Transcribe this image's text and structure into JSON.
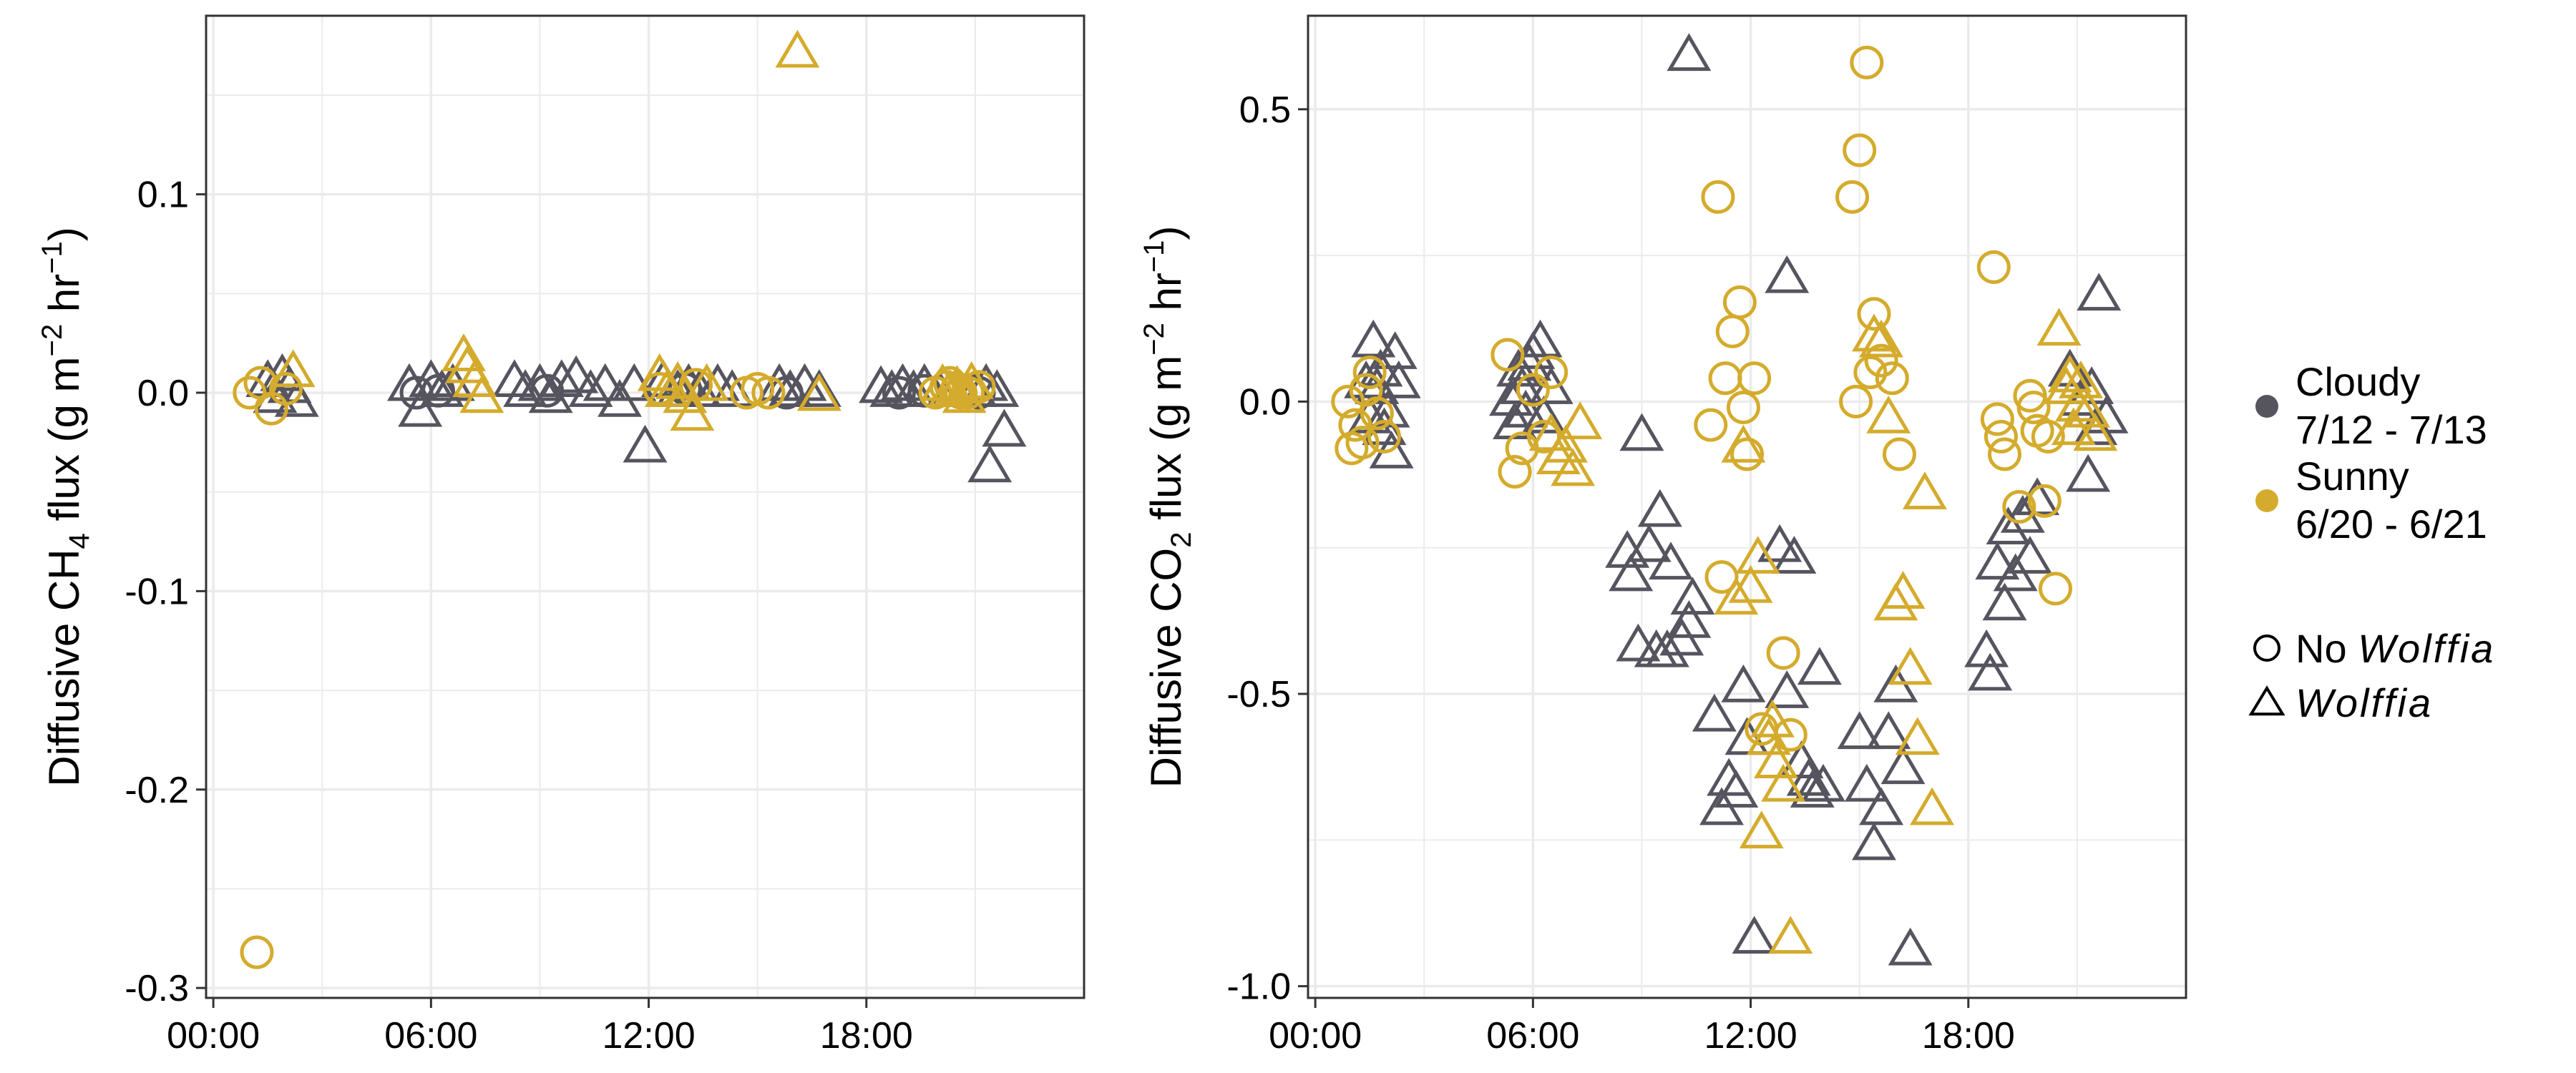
{
  "colors": {
    "cloudy": "#56545f",
    "sunny": "#d4ab2c",
    "grid": "#ebebeb",
    "panel_border": "#333333"
  },
  "legend": {
    "weather": [
      {
        "key": "cloudy",
        "line1": "Cloudy",
        "line2": "7/12 - 7/13"
      },
      {
        "key": "sunny",
        "line1": "Sunny",
        "line2": "6/20 - 6/21"
      }
    ],
    "treatment": [
      {
        "key": "no_wolffia",
        "shape": "circle",
        "prefix": "No ",
        "italic": "Wolffia"
      },
      {
        "key": "wolffia",
        "shape": "triangle",
        "prefix": "",
        "italic": "Wolffia"
      }
    ]
  },
  "chart_data": [
    {
      "type": "scatter",
      "title": "",
      "xlabel": "",
      "ylabel_parts": [
        "Diffusive CH",
        "4",
        " flux (g m",
        "−2",
        " hr",
        "−1",
        ")"
      ],
      "xlim": [
        -0.2,
        24
      ],
      "ylim": [
        -0.305,
        0.19
      ],
      "x_ticks": [
        0,
        6,
        12,
        18
      ],
      "x_tick_labels": [
        "00:00",
        "06:00",
        "12:00",
        "18:00"
      ],
      "y_ticks": [
        -0.3,
        -0.2,
        -0.1,
        0.0,
        0.1
      ],
      "y_tick_labels": [
        "-0.3",
        "-0.2",
        "-0.1",
        "0.0",
        "0.1"
      ],
      "grid": true,
      "series": [
        {
          "color_key": "cloudy",
          "shape": "triangle",
          "x": [
            1.5,
            1.7,
            1.9,
            2.1,
            2.3,
            5.4,
            5.7,
            6.0,
            6.3,
            6.6,
            8.3,
            8.6,
            9.0,
            9.3,
            9.6,
            10.0,
            10.4,
            10.8,
            11.2,
            11.6,
            11.9,
            12.4,
            12.8,
            13.1,
            13.4,
            13.9,
            14.3,
            15.6,
            15.9,
            16.3,
            16.7,
            18.4,
            18.7,
            19.0,
            19.3,
            19.6,
            20.0,
            20.5,
            21.0,
            21.3,
            21.6,
            21.8,
            21.4
          ],
          "y": [
            0.005,
            -0.003,
            0.008,
            0.002,
            -0.005,
            0.003,
            -0.01,
            0.005,
            0.0,
            0.003,
            0.005,
            0.0,
            0.003,
            -0.003,
            0.005,
            0.007,
            0.0,
            0.003,
            -0.005,
            0.003,
            -0.028,
            0.005,
            0.0,
            0.003,
            0.0,
            0.003,
            0.0,
            0.003,
            0.0,
            0.003,
            0.0,
            0.002,
            0.0,
            0.003,
            0.0,
            0.003,
            0.0,
            0.002,
            0.0,
            0.003,
            0.0,
            -0.02,
            -0.038
          ]
        },
        {
          "color_key": "cloudy",
          "shape": "circle",
          "x": [
            5.6,
            6.2,
            9.2,
            13.0,
            15.8,
            18.9,
            19.6,
            21.1
          ],
          "y": [
            0.0,
            0.001,
            0.001,
            0.002,
            0.0,
            0.0,
            0.001,
            0.0
          ]
        },
        {
          "color_key": "sunny",
          "shape": "circle",
          "x": [
            1.0,
            1.3,
            1.6,
            2.0,
            1.2,
            12.3,
            13.3,
            14.7,
            15.0,
            15.3,
            19.9,
            20.2,
            20.5,
            20.8,
            21.1,
            20.3,
            20.6
          ],
          "y": [
            0.0,
            0.005,
            -0.008,
            0.002,
            -0.282,
            0.002,
            0.004,
            0.0,
            0.002,
            0.0,
            0.0,
            0.003,
            0.002,
            0.0,
            0.003,
            0.005,
            0.0
          ]
        },
        {
          "color_key": "sunny",
          "shape": "triangle",
          "x": [
            2.2,
            6.9,
            7.0,
            7.2,
            7.4,
            12.3,
            12.5,
            12.8,
            13.0,
            13.2,
            13.6,
            16.1,
            16.7,
            20.1,
            20.3,
            20.5,
            20.7,
            20.9
          ],
          "y": [
            0.01,
            0.018,
            0.012,
            0.005,
            -0.003,
            0.008,
            0.0,
            0.004,
            -0.003,
            -0.012,
            0.003,
            0.171,
            -0.002,
            0.003,
            0.0,
            0.002,
            -0.003,
            0.004
          ]
        }
      ]
    },
    {
      "type": "scatter",
      "title": "",
      "xlabel": "",
      "ylabel_parts": [
        "Diffusive CO",
        "2",
        " flux (g m",
        "−2",
        " hr",
        "−1",
        ")"
      ],
      "xlim": [
        -0.2,
        24
      ],
      "ylim": [
        -1.02,
        0.66
      ],
      "x_ticks": [
        0,
        6,
        12,
        18
      ],
      "x_tick_labels": [
        "00:00",
        "06:00",
        "12:00",
        "18:00"
      ],
      "y_ticks": [
        -1.0,
        -0.5,
        0.0,
        0.5
      ],
      "y_tick_labels": [
        "-1.0",
        "-0.5",
        "0.0",
        "0.5"
      ],
      "grid": true,
      "series": [
        {
          "color_key": "cloudy",
          "shape": "triangle",
          "x": [
            1.4,
            1.6,
            1.8,
            2.0,
            2.2,
            1.5,
            1.7,
            1.9,
            2.1,
            2.3,
            5.4,
            5.6,
            5.8,
            6.0,
            6.2,
            5.5,
            5.7,
            5.9,
            6.3,
            6.5,
            8.6,
            8.7,
            8.9,
            9.0,
            9.2,
            9.4,
            9.5,
            9.7,
            9.8,
            10.1,
            10.4,
            10.3,
            11.0,
            11.2,
            11.4,
            11.6,
            11.8,
            11.9,
            12.1,
            12.8,
            13.0,
            13.2,
            13.4,
            13.6,
            13.7,
            13.9,
            14.0,
            15.0,
            15.2,
            15.4,
            15.6,
            15.8,
            16.0,
            16.2,
            16.4,
            18.5,
            18.6,
            18.8,
            19.0,
            19.1,
            19.3,
            19.5,
            19.7,
            19.9,
            20.8,
            21.1,
            21.4,
            21.6,
            21.8,
            21.3,
            21.5
          ],
          "y": [
            0.03,
            0.1,
            0.05,
            -0.02,
            0.08,
            -0.03,
            0.02,
            -0.05,
            -0.09,
            0.03,
            0.0,
            0.05,
            -0.02,
            0.08,
            0.1,
            -0.04,
            0.02,
            0.06,
            -0.03,
            0.02,
            -0.26,
            -0.3,
            -0.42,
            -0.06,
            -0.25,
            -0.43,
            -0.19,
            -0.43,
            -0.28,
            -0.41,
            -0.34,
            -0.38,
            -0.54,
            -0.7,
            -0.65,
            -0.67,
            -0.49,
            -0.58,
            -0.92,
            -0.25,
            -0.5,
            -0.27,
            -0.62,
            -0.65,
            -0.67,
            -0.46,
            -0.66,
            -0.57,
            -0.66,
            -0.76,
            -0.7,
            -0.57,
            -0.49,
            -0.63,
            -0.94,
            -0.43,
            -0.47,
            -0.28,
            -0.35,
            -0.22,
            -0.3,
            -0.2,
            -0.27,
            -0.17,
            0.05,
            0.0,
            0.02,
            0.18,
            -0.03,
            -0.13,
            -0.05
          ]
        },
        {
          "color_key": "cloudy",
          "shape": "triangle_extra",
          "x": [
            10.3,
            13.0
          ],
          "y": [
            0.59,
            0.21
          ]
        },
        {
          "color_key": "sunny",
          "shape": "circle",
          "x": [
            0.9,
            1.1,
            1.3,
            1.5,
            1.7,
            1.9,
            1.0,
            1.4,
            5.3,
            5.5,
            5.7,
            6.0,
            6.3,
            6.5,
            10.9,
            11.1,
            11.3,
            11.5,
            11.7,
            11.9,
            12.1,
            11.2,
            11.8,
            12.3,
            12.9,
            13.1,
            14.8,
            15.0,
            15.2,
            15.4,
            15.6,
            15.9,
            16.1,
            14.9,
            15.3,
            18.7,
            18.8,
            18.9,
            19.0,
            19.4,
            19.7,
            19.8,
            19.9,
            20.1,
            20.2,
            20.4
          ],
          "y": [
            0.0,
            -0.04,
            -0.07,
            0.05,
            -0.02,
            -0.06,
            -0.08,
            0.02,
            0.08,
            -0.12,
            -0.08,
            0.02,
            -0.06,
            0.05,
            -0.04,
            0.35,
            0.04,
            0.12,
            0.17,
            -0.09,
            0.04,
            -0.3,
            -0.01,
            -0.56,
            -0.43,
            -0.57,
            0.35,
            0.43,
            0.58,
            0.15,
            0.07,
            0.04,
            -0.09,
            0.0,
            0.05,
            0.23,
            -0.03,
            -0.06,
            -0.09,
            -0.18,
            0.01,
            -0.01,
            -0.05,
            -0.17,
            -0.06,
            -0.32
          ]
        },
        {
          "color_key": "sunny",
          "shape": "triangle",
          "x": [
            6.5,
            6.7,
            6.9,
            7.1,
            7.3,
            11.6,
            11.8,
            12.0,
            12.2,
            12.5,
            12.7,
            12.9,
            13.1,
            12.3,
            12.6,
            15.4,
            15.6,
            15.8,
            16.0,
            16.2,
            16.4,
            16.6,
            16.8,
            17.0,
            20.5,
            20.7,
            20.9,
            21.1,
            21.3,
            21.5,
            20.8,
            21.0
          ],
          "y": [
            -0.06,
            -0.1,
            -0.08,
            -0.12,
            -0.04,
            -0.34,
            -0.08,
            -0.32,
            -0.27,
            -0.58,
            -0.62,
            -0.66,
            -0.92,
            -0.74,
            -0.55,
            0.11,
            0.1,
            -0.03,
            -0.35,
            -0.33,
            -0.46,
            -0.58,
            -0.16,
            -0.7,
            0.12,
            0.02,
            -0.05,
            0.03,
            -0.02,
            -0.06,
            0.04,
            -0.01
          ]
        }
      ]
    }
  ]
}
